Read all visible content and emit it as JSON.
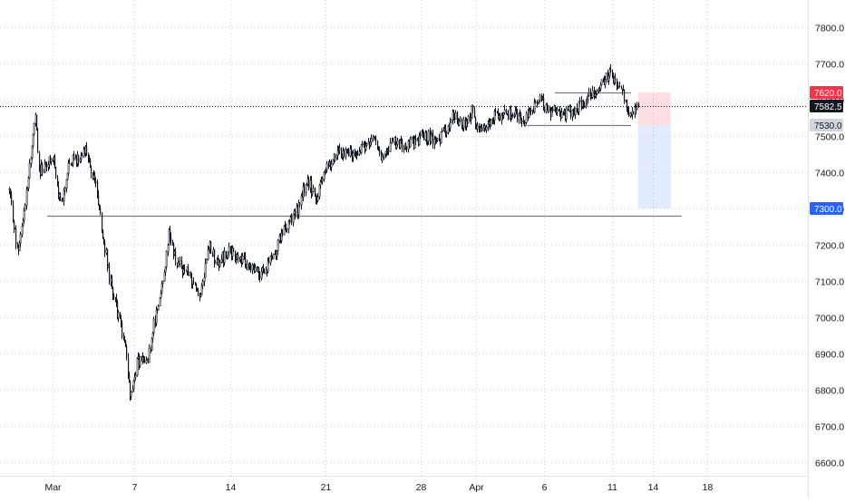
{
  "chart_data": {
    "type": "candlestick",
    "title": "",
    "xlabel": "",
    "ylabel": "",
    "ylim": [
      6560,
      7860
    ],
    "grid": true,
    "y_ticks": [
      "7800.0",
      "7700.0",
      "7600.0",
      "7500.0",
      "7400.0",
      "7300.0",
      "7200.0",
      "7100.0",
      "7000.0",
      "6900.0",
      "6800.0",
      "6700.0",
      "6600.0"
    ],
    "x_ticks": [
      {
        "label": "Mar",
        "day": 0
      },
      {
        "label": "7",
        "day": 6
      },
      {
        "label": "14",
        "day": 13
      },
      {
        "label": "21",
        "day": 20
      },
      {
        "label": "28",
        "day": 27
      },
      {
        "label": "Apr",
        "day": 31
      },
      {
        "label": "6",
        "day": 36
      },
      {
        "label": "11",
        "day": 41
      },
      {
        "label": "14",
        "day": 44
      },
      {
        "label": "18",
        "day": 48
      }
    ],
    "price_path": [
      {
        "day": -3.2,
        "price": 7350
      },
      {
        "day": -2.6,
        "price": 7180
      },
      {
        "day": -2.1,
        "price": 7290
      },
      {
        "day": -1.3,
        "price": 7560
      },
      {
        "day": -1.0,
        "price": 7400
      },
      {
        "day": 0.0,
        "price": 7440
      },
      {
        "day": 0.6,
        "price": 7300
      },
      {
        "day": 1.1,
        "price": 7420
      },
      {
        "day": 2.4,
        "price": 7460
      },
      {
        "day": 3.2,
        "price": 7360
      },
      {
        "day": 3.6,
        "price": 7240
      },
      {
        "day": 4.2,
        "price": 7100
      },
      {
        "day": 4.8,
        "price": 7000
      },
      {
        "day": 5.3,
        "price": 6920
      },
      {
        "day": 5.7,
        "price": 6780
      },
      {
        "day": 6.2,
        "price": 6880
      },
      {
        "day": 6.9,
        "price": 6870
      },
      {
        "day": 7.5,
        "price": 7000
      },
      {
        "day": 8.1,
        "price": 7100
      },
      {
        "day": 8.5,
        "price": 7250
      },
      {
        "day": 9.0,
        "price": 7150
      },
      {
        "day": 10.0,
        "price": 7120
      },
      {
        "day": 10.8,
        "price": 7060
      },
      {
        "day": 11.4,
        "price": 7200
      },
      {
        "day": 12.0,
        "price": 7150
      },
      {
        "day": 13.0,
        "price": 7180
      },
      {
        "day": 14.3,
        "price": 7150
      },
      {
        "day": 15.3,
        "price": 7120
      },
      {
        "day": 16.2,
        "price": 7170
      },
      {
        "day": 17.0,
        "price": 7250
      },
      {
        "day": 18.0,
        "price": 7300
      },
      {
        "day": 18.6,
        "price": 7380
      },
      {
        "day": 19.3,
        "price": 7330
      },
      {
        "day": 20.0,
        "price": 7420
      },
      {
        "day": 21.0,
        "price": 7450
      },
      {
        "day": 22.3,
        "price": 7460
      },
      {
        "day": 23.5,
        "price": 7500
      },
      {
        "day": 24.0,
        "price": 7440
      },
      {
        "day": 25.0,
        "price": 7480
      },
      {
        "day": 26.3,
        "price": 7480
      },
      {
        "day": 27.5,
        "price": 7500
      },
      {
        "day": 28.2,
        "price": 7480
      },
      {
        "day": 29.4,
        "price": 7560
      },
      {
        "day": 30.0,
        "price": 7530
      },
      {
        "day": 30.7,
        "price": 7570
      },
      {
        "day": 31.2,
        "price": 7510
      },
      {
        "day": 32.3,
        "price": 7550
      },
      {
        "day": 33.5,
        "price": 7560
      },
      {
        "day": 34.6,
        "price": 7540
      },
      {
        "day": 35.5,
        "price": 7600
      },
      {
        "day": 36.5,
        "price": 7570
      },
      {
        "day": 37.5,
        "price": 7560
      },
      {
        "day": 38.5,
        "price": 7580
      },
      {
        "day": 39.5,
        "price": 7610
      },
      {
        "day": 40.2,
        "price": 7640
      },
      {
        "day": 40.8,
        "price": 7670
      },
      {
        "day": 41.3,
        "price": 7650
      },
      {
        "day": 41.9,
        "price": 7610
      },
      {
        "day": 42.4,
        "price": 7550
      },
      {
        "day": 42.9,
        "price": 7582.5
      }
    ],
    "horizontal_levels": [
      {
        "price": 7280,
        "day_start": -0.4,
        "day_end": 46.1
      },
      {
        "price": 7620,
        "day_start": 36.8,
        "day_end": 42.4
      },
      {
        "price": 7530,
        "day_start": 34.8,
        "day_end": 42.4
      }
    ],
    "position": {
      "entry": 7530.0,
      "stop": 7620.0,
      "target": 7300.0,
      "day_start": 42.9,
      "day_end": 45.3,
      "stop_color": "#f23645",
      "target_color": "#2962ff"
    },
    "last_price": 7582.5,
    "price_labels": [
      {
        "text": "7620.0",
        "price": 7620.0,
        "bg": "#f23645",
        "fg": "#ffffff"
      },
      {
        "text": "7582.5",
        "price": 7582.5,
        "bg": "#131722",
        "fg": "#ffffff"
      },
      {
        "text": "7530.0",
        "price": 7530.0,
        "bg": "#d1d4dc",
        "fg": "#131722"
      },
      {
        "text": "7300.0",
        "price": 7300.0,
        "bg": "#2962ff",
        "fg": "#ffffff"
      }
    ],
    "colors": {
      "candle": "#131722",
      "grid": "#d1d4dc",
      "axis_text": "#131722",
      "level_line": "#787b86"
    }
  }
}
